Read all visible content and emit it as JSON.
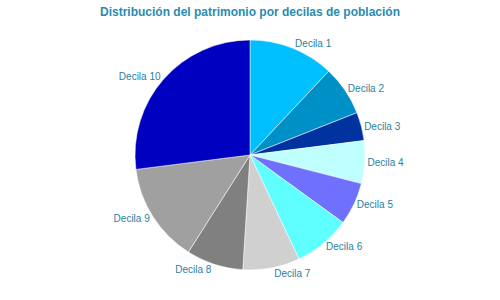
{
  "chart_data": {
    "type": "pie",
    "title": "Distribución del patrimonio por decilas de población",
    "categories": [
      "Decila 1",
      "Decila 2",
      "Decila 3",
      "Decila 4",
      "Decila 5",
      "Decila 6",
      "Decila 7",
      "Decila 8",
      "Decila 9",
      "Decila 10"
    ],
    "values": [
      12,
      7,
      4,
      6,
      6,
      8,
      8,
      8,
      14,
      27
    ],
    "colors": [
      "#00bfff",
      "#0090c8",
      "#0033a0",
      "#c0ffff",
      "#7070ff",
      "#60ffff",
      "#d0d0d0",
      "#808080",
      "#a0a0a0",
      "#0000c0"
    ]
  }
}
